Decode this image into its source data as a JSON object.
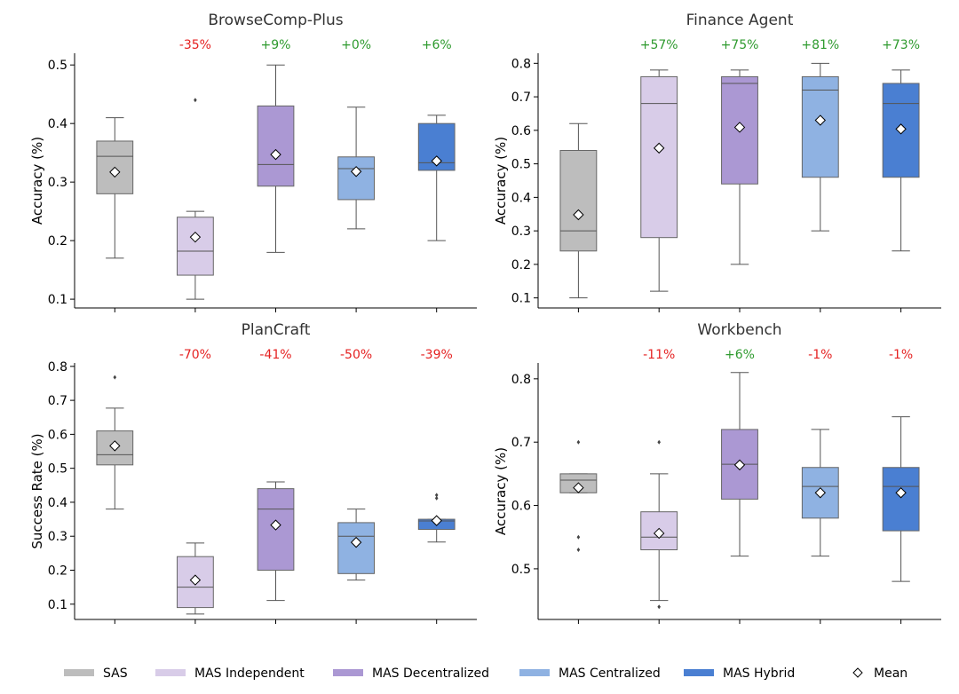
{
  "legend": {
    "items": [
      {
        "label": "SAS",
        "color": "#bdbdbd",
        "kind": "patch"
      },
      {
        "label": "MAS Independent",
        "color": "#d8cce8",
        "kind": "patch"
      },
      {
        "label": "MAS Decentralized",
        "color": "#ab98d3",
        "kind": "patch"
      },
      {
        "label": "MAS Centralized",
        "color": "#8fb2e2",
        "kind": "patch"
      },
      {
        "label": "MAS Hybrid",
        "color": "#4a7fd2",
        "kind": "patch"
      },
      {
        "label": "Mean",
        "color": "#ffffff",
        "kind": "diamond"
      }
    ]
  },
  "colors": {
    "positive": "#2e9a2e",
    "negative": "#e52222",
    "median": "#555555",
    "whisker": "#555555"
  },
  "chart_data": [
    {
      "type": "box",
      "title": "BrowseComp-Plus",
      "ylabel": "Accuracy (%)",
      "ylim": [
        0.085,
        0.52
      ],
      "yticks": [
        0.1,
        0.2,
        0.3,
        0.4,
        0.5
      ],
      "tick_decimals": 1,
      "annotations": [
        "",
        "-35%",
        "+9%",
        "+0%",
        "+6%"
      ],
      "boxes": [
        {
          "group": "SAS",
          "whisker_low": 0.17,
          "q1": 0.28,
          "median": 0.344,
          "q3": 0.37,
          "whisker_high": 0.41,
          "mean": 0.317,
          "outliers": []
        },
        {
          "group": "MAS Independent",
          "whisker_low": 0.1,
          "q1": 0.141,
          "median": 0.182,
          "q3": 0.24,
          "whisker_high": 0.25,
          "mean": 0.206,
          "outliers": [
            0.44
          ]
        },
        {
          "group": "MAS Decentralized",
          "whisker_low": 0.18,
          "q1": 0.293,
          "median": 0.33,
          "q3": 0.43,
          "whisker_high": 0.5,
          "mean": 0.347,
          "outliers": []
        },
        {
          "group": "MAS Centralized",
          "whisker_low": 0.22,
          "q1": 0.27,
          "median": 0.323,
          "q3": 0.343,
          "whisker_high": 0.428,
          "mean": 0.318,
          "outliers": []
        },
        {
          "group": "MAS Hybrid",
          "whisker_low": 0.2,
          "q1": 0.32,
          "median": 0.333,
          "q3": 0.4,
          "whisker_high": 0.414,
          "mean": 0.336,
          "outliers": []
        }
      ]
    },
    {
      "type": "box",
      "title": "Finance Agent",
      "ylabel": "Accuracy (%)",
      "ylim": [
        0.07,
        0.83
      ],
      "yticks": [
        0.1,
        0.2,
        0.3,
        0.4,
        0.5,
        0.6,
        0.7,
        0.8
      ],
      "tick_decimals": 1,
      "annotations": [
        "",
        "+57%",
        "+75%",
        "+81%",
        "+73%"
      ],
      "boxes": [
        {
          "group": "SAS",
          "whisker_low": 0.1,
          "q1": 0.24,
          "median": 0.3,
          "q3": 0.54,
          "whisker_high": 0.62,
          "mean": 0.348,
          "outliers": []
        },
        {
          "group": "MAS Independent",
          "whisker_low": 0.12,
          "q1": 0.28,
          "median": 0.68,
          "q3": 0.76,
          "whisker_high": 0.78,
          "mean": 0.547,
          "outliers": []
        },
        {
          "group": "MAS Decentralized",
          "whisker_low": 0.2,
          "q1": 0.44,
          "median": 0.74,
          "q3": 0.76,
          "whisker_high": 0.78,
          "mean": 0.609,
          "outliers": []
        },
        {
          "group": "MAS Centralized",
          "whisker_low": 0.3,
          "q1": 0.46,
          "median": 0.72,
          "q3": 0.76,
          "whisker_high": 0.8,
          "mean": 0.63,
          "outliers": []
        },
        {
          "group": "MAS Hybrid",
          "whisker_low": 0.24,
          "q1": 0.46,
          "median": 0.68,
          "q3": 0.74,
          "whisker_high": 0.78,
          "mean": 0.604,
          "outliers": []
        }
      ]
    },
    {
      "type": "box",
      "title": "PlanCraft",
      "ylabel": "Success Rate (%)",
      "ylim": [
        0.055,
        0.81
      ],
      "yticks": [
        0.1,
        0.2,
        0.3,
        0.4,
        0.5,
        0.6,
        0.7,
        0.8
      ],
      "tick_decimals": 1,
      "annotations": [
        "",
        "-70%",
        "-41%",
        "-50%",
        "-39%"
      ],
      "boxes": [
        {
          "group": "SAS",
          "whisker_low": 0.38,
          "q1": 0.51,
          "median": 0.54,
          "q3": 0.61,
          "whisker_high": 0.677,
          "mean": 0.566,
          "outliers": [
            0.768
          ]
        },
        {
          "group": "MAS Independent",
          "whisker_low": 0.071,
          "q1": 0.09,
          "median": 0.15,
          "q3": 0.24,
          "whisker_high": 0.28,
          "mean": 0.171,
          "outliers": []
        },
        {
          "group": "MAS Decentralized",
          "whisker_low": 0.111,
          "q1": 0.2,
          "median": 0.38,
          "q3": 0.44,
          "whisker_high": 0.46,
          "mean": 0.333,
          "outliers": []
        },
        {
          "group": "MAS Centralized",
          "whisker_low": 0.171,
          "q1": 0.19,
          "median": 0.3,
          "q3": 0.34,
          "whisker_high": 0.38,
          "mean": 0.282,
          "outliers": []
        },
        {
          "group": "MAS Hybrid",
          "whisker_low": 0.283,
          "q1": 0.32,
          "median": 0.345,
          "q3": 0.35,
          "whisker_high": 0.35,
          "mean": 0.346,
          "outliers": [
            0.412,
            0.421
          ]
        }
      ]
    },
    {
      "type": "box",
      "title": "Workbench",
      "ylabel": "Accuracy (%)",
      "ylim": [
        0.42,
        0.825
      ],
      "yticks": [
        0.5,
        0.6,
        0.7,
        0.8
      ],
      "tick_decimals": 1,
      "annotations": [
        "",
        "-11%",
        "+6%",
        "-1%",
        "-1%"
      ],
      "boxes": [
        {
          "group": "SAS",
          "whisker_low": 0.62,
          "q1": 0.62,
          "median": 0.64,
          "q3": 0.65,
          "whisker_high": 0.65,
          "mean": 0.628,
          "outliers": [
            0.7,
            0.55,
            0.53
          ]
        },
        {
          "group": "MAS Independent",
          "whisker_low": 0.45,
          "q1": 0.53,
          "median": 0.55,
          "q3": 0.59,
          "whisker_high": 0.65,
          "mean": 0.556,
          "outliers": [
            0.7,
            0.44
          ]
        },
        {
          "group": "MAS Decentralized",
          "whisker_low": 0.52,
          "q1": 0.61,
          "median": 0.665,
          "q3": 0.72,
          "whisker_high": 0.81,
          "mean": 0.664,
          "outliers": []
        },
        {
          "group": "MAS Centralized",
          "whisker_low": 0.52,
          "q1": 0.58,
          "median": 0.63,
          "q3": 0.66,
          "whisker_high": 0.72,
          "mean": 0.62,
          "outliers": []
        },
        {
          "group": "MAS Hybrid",
          "whisker_low": 0.48,
          "q1": 0.56,
          "median": 0.63,
          "q3": 0.66,
          "whisker_high": 0.74,
          "mean": 0.62,
          "outliers": []
        }
      ]
    }
  ]
}
